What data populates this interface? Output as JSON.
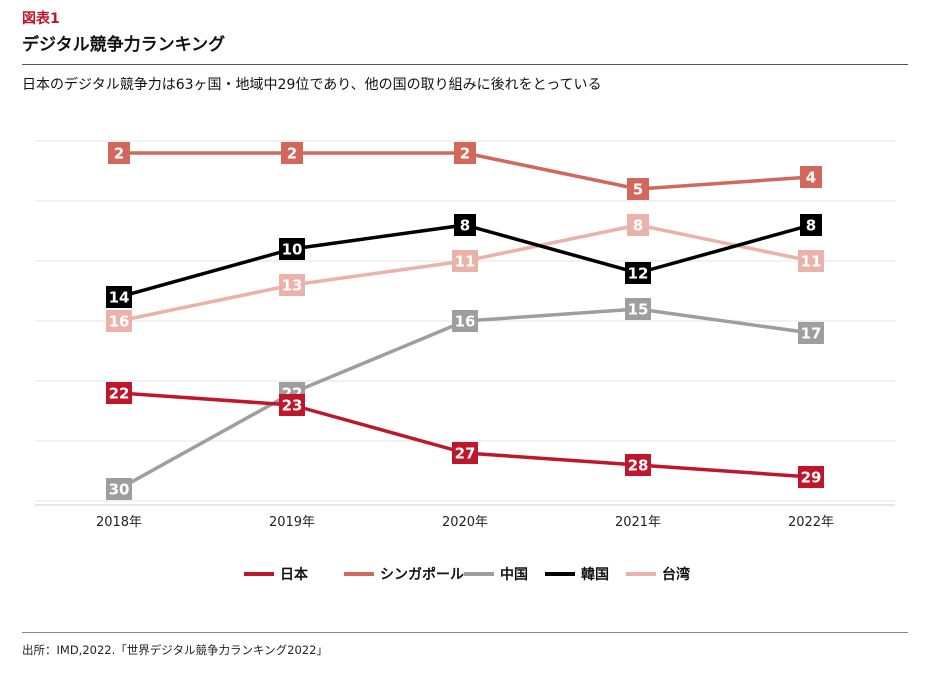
{
  "figure_label": "図表1",
  "title": "デジタル競争力ランキング",
  "subtitle": "日本のデジタル競争力は63ヶ国・地域中29位であり、他の国の取り組みに後れをとっている",
  "source": "出所：IMD,2022.「世界デジタル競争力ランキング2022」",
  "chart_data": {
    "type": "line",
    "x": [
      "2018年",
      "2019年",
      "2020年",
      "2021年",
      "2022年"
    ],
    "ylim": [
      33,
      1
    ],
    "y_inverted": true,
    "grid": true,
    "legend_position": "bottom",
    "series": [
      {
        "name": "日本",
        "color": "#c0162b",
        "values": [
          22,
          23,
          27,
          28,
          29
        ]
      },
      {
        "name": "シンガポール",
        "color": "#d2685b",
        "values": [
          2,
          2,
          2,
          5,
          4
        ]
      },
      {
        "name": "中国",
        "color": "#9e9e9e",
        "values": [
          30,
          22,
          16,
          15,
          17
        ]
      },
      {
        "name": "韓国",
        "color": "#000000",
        "values": [
          14,
          10,
          8,
          12,
          8
        ]
      },
      {
        "name": "台湾",
        "color": "#eab2a8",
        "values": [
          16,
          13,
          11,
          8,
          11
        ]
      }
    ]
  }
}
